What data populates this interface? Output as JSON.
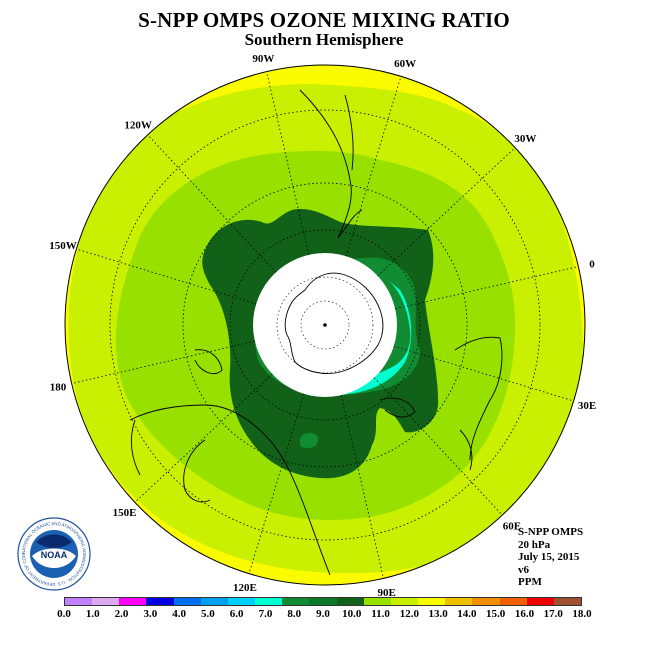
{
  "header": {
    "title": "S-NPP OMPS OZONE MIXING RATIO",
    "subtitle": "Southern Hemisphere"
  },
  "map": {
    "projection": "south-polar-stereographic",
    "longitude_labels": [
      "0",
      "30E",
      "60E",
      "90E",
      "120E",
      "150E",
      "180",
      "150W",
      "120W",
      "90W",
      "60W",
      "30W"
    ],
    "contour_colors": {
      "c11_12": "#c8f000",
      "c12_13": "#fbfb00",
      "c10_11": "#97e000",
      "c9_10": "#116218",
      "c8_9": "#128c33",
      "c7_8": "#00ffd0"
    }
  },
  "info": {
    "satellite": "S-NPP OMPS",
    "level": "20 hPa",
    "date": "July 15, 2015",
    "version": "v6",
    "units": "PPM"
  },
  "logo": {
    "text": "NOAA",
    "ring_text": "NATIONAL OCEANIC AND ATMOSPHERIC ADMINISTRATION · U.S. DEPARTMENT OF COMMERCE",
    "icon": "noaa-logo-icon"
  },
  "colorbar": {
    "colors": [
      "#c080ff",
      "#dca8f0",
      "#ff00ff",
      "#0000e0",
      "#0070f0",
      "#00a0f0",
      "#00d0ff",
      "#00ffd0",
      "#128c33",
      "#0c7a28",
      "#116218",
      "#97e000",
      "#c8f000",
      "#fbfb00",
      "#f0c000",
      "#f09000",
      "#f06000",
      "#f00000",
      "#a05030"
    ],
    "ticks": [
      "0.0",
      "1.0",
      "2.0",
      "3.0",
      "4.0",
      "5.0",
      "6.0",
      "7.0",
      "8.0",
      "9.0",
      "10.0",
      "11.0",
      "12.0",
      "13.0",
      "14.0",
      "15.0",
      "16.0",
      "17.0",
      "18.0"
    ]
  }
}
